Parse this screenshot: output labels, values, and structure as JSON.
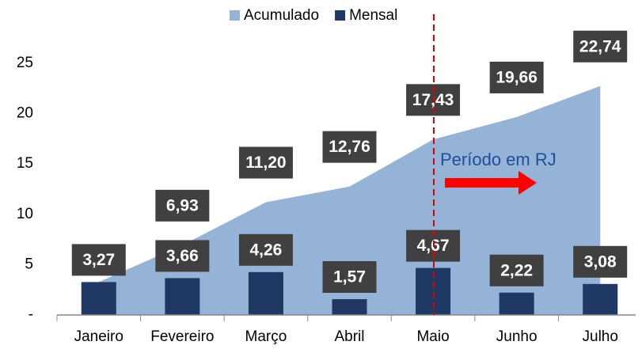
{
  "chart_data": {
    "type": "bar",
    "categories": [
      "Janeiro",
      "Fevereiro",
      "Março",
      "Abril",
      "Maio",
      "Junho",
      "Julho"
    ],
    "series": [
      {
        "name": "Acumulado",
        "type": "area",
        "color": "#95b3d7",
        "values": [
          3.27,
          6.93,
          11.2,
          12.76,
          17.43,
          19.66,
          22.74
        ],
        "value_labels": [
          null,
          "6,93",
          "11,20",
          "12,76",
          "17,43",
          "19,66",
          "22,74"
        ]
      },
      {
        "name": "Mensal",
        "type": "bar",
        "color": "#1f3864",
        "values": [
          3.27,
          3.66,
          4.26,
          1.57,
          4.67,
          2.22,
          3.08
        ],
        "value_labels": [
          "3,27",
          "3,66",
          "4,26",
          "1,57",
          "4,67",
          "2,22",
          "3,08"
        ]
      }
    ],
    "ylim": [
      0,
      30
    ],
    "yticks": [
      {
        "value": 0,
        "label": "-"
      },
      5,
      10,
      15,
      20,
      25
    ],
    "grid": false,
    "legend": "top",
    "annotation": "Período em RJ"
  }
}
